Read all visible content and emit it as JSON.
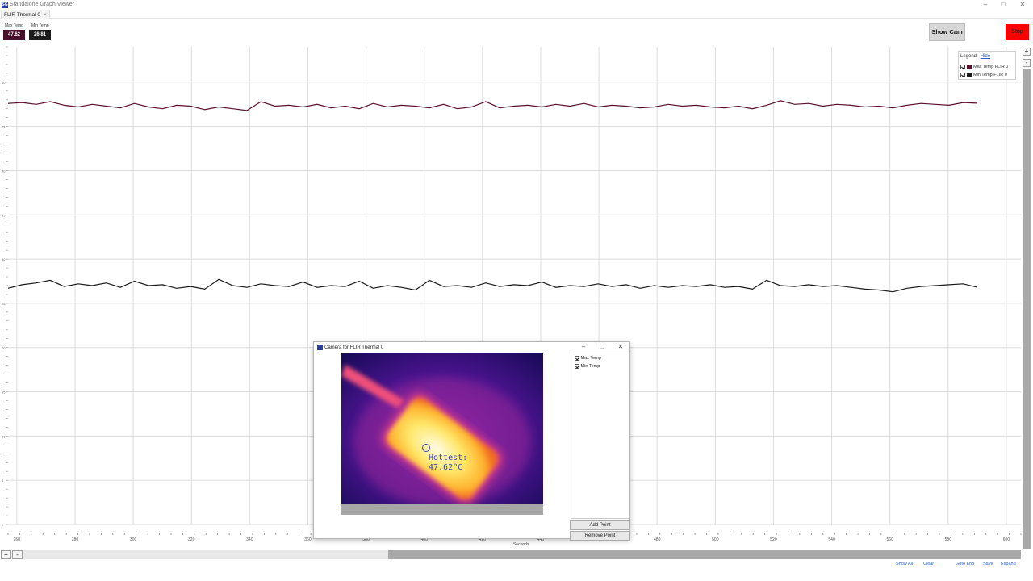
{
  "window": {
    "app_icon_text": "SG",
    "title": "Standalone Graph Viewer",
    "min_glyph": "–",
    "max_glyph": "□",
    "close_glyph": "✕"
  },
  "tabs": [
    {
      "label": "FLIR Thermal 0",
      "close_glyph": "×"
    }
  ],
  "stats": {
    "max": {
      "label": "Max Temp",
      "value": "47.62",
      "color": "#4a0f2a"
    },
    "min": {
      "label": "Min Temp",
      "value": "26.81",
      "color": "#1c1c1c"
    }
  },
  "buttons": {
    "show_cam": "Show Cam",
    "stop": "Stop"
  },
  "legend": {
    "header": "Legend:",
    "hide_link": "Hide",
    "items": [
      {
        "label": "Max Temp FLIR 0",
        "color": "#5a0f2d",
        "checked": true
      },
      {
        "label": "Min Temp FLIR 0",
        "color": "#1a1a1a",
        "checked": true
      }
    ]
  },
  "chart_data": {
    "type": "line",
    "xlabel": "Seconds",
    "xlim": [
      257,
      605
    ],
    "ylim": [
      0,
      54
    ],
    "x_ticks": [
      260,
      280,
      300,
      320,
      340,
      360,
      380,
      400,
      420,
      440,
      460,
      480,
      500,
      520,
      540,
      560,
      580,
      600
    ],
    "y_ticks": [
      0,
      5,
      10,
      15,
      20,
      25,
      30,
      35,
      40,
      45,
      50
    ],
    "grid": true,
    "x_range_data": [
      257,
      590
    ],
    "series": [
      {
        "name": "Max Temp FLIR 0",
        "color": "#5a0f2d",
        "baseline": 47.3,
        "values": [
          47.6,
          47.7,
          47.5,
          47.8,
          47.4,
          47.2,
          47.5,
          47.3,
          47.1,
          47.6,
          47.2,
          47.0,
          47.4,
          47.3,
          46.9,
          47.2,
          47.0,
          46.8,
          47.8,
          47.3,
          47.4,
          47.2,
          47.5,
          47.1,
          47.3,
          47.0,
          47.6,
          47.2,
          47.4,
          47.3,
          47.1,
          47.5,
          47.0,
          47.2,
          47.8,
          47.1,
          47.3,
          47.4,
          47.2,
          47.5,
          47.3,
          47.6,
          47.2,
          47.4,
          47.3,
          47.1,
          47.2,
          47.5,
          47.3,
          47.4,
          47.2,
          47.1,
          47.3,
          47.0,
          47.4,
          47.9,
          47.5,
          47.6,
          47.3,
          47.5,
          47.4,
          47.2,
          47.3,
          47.1,
          47.4,
          47.6,
          47.5,
          47.4,
          47.7,
          47.62
        ]
      },
      {
        "name": "Min Temp FLIR 0",
        "color": "#1a1a1a",
        "baseline": 27.0,
        "values": [
          26.7,
          27.1,
          27.3,
          27.6,
          26.9,
          27.2,
          27.0,
          27.3,
          26.8,
          27.5,
          27.0,
          27.1,
          26.7,
          26.9,
          26.6,
          27.7,
          27.0,
          26.8,
          27.2,
          27.0,
          26.9,
          27.4,
          26.8,
          27.0,
          26.9,
          27.5,
          26.7,
          27.0,
          26.8,
          26.5,
          27.6,
          26.9,
          27.0,
          26.8,
          27.3,
          26.9,
          27.1,
          27.0,
          27.4,
          26.8,
          27.0,
          26.9,
          27.2,
          26.9,
          27.1,
          26.7,
          27.0,
          26.8,
          27.0,
          26.9,
          27.1,
          26.8,
          26.9,
          26.6,
          27.6,
          27.0,
          26.9,
          27.1,
          26.9,
          27.0,
          26.8,
          26.6,
          26.5,
          26.3,
          26.7,
          26.9,
          27.0,
          27.1,
          27.2,
          26.81
        ]
      }
    ]
  },
  "camera_window": {
    "title": "Camera for FLIR Thermal 0",
    "hottest_label": "Hottest:",
    "hottest_value": "47.62°C",
    "list": [
      {
        "label": "Max Temp",
        "checked": true
      },
      {
        "label": "Min Temp",
        "checked": true
      }
    ],
    "add_point": "Add Point",
    "remove_point": "Remove Point"
  },
  "scroll": {
    "plus": "+",
    "minus": "-"
  },
  "footer_links": [
    "Show All",
    "Clear",
    "Goto End",
    "Save",
    "Expand"
  ]
}
